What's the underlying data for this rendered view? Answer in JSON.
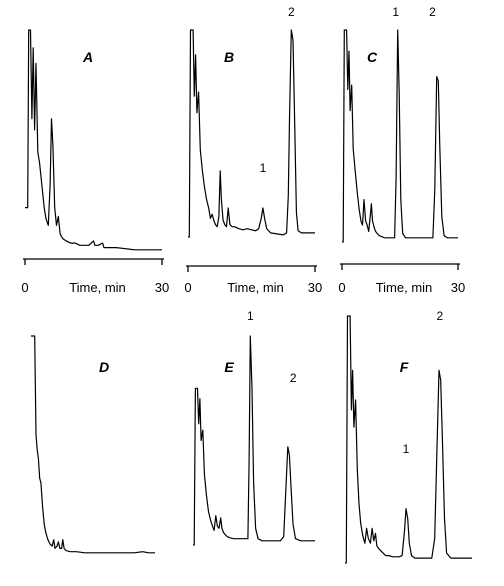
{
  "chart_data": {
    "type": "line",
    "x_axis": {
      "min_label": "0",
      "title": "Time, min",
      "max_label": "30",
      "range": [
        0,
        30
      ]
    },
    "panels": [
      {
        "letter": "A",
        "trace": [
          [
            0,
            20
          ],
          [
            0.3,
            20
          ],
          [
            0.6,
            20
          ],
          [
            0.8,
            100
          ],
          [
            1.2,
            100
          ],
          [
            1.5,
            60
          ],
          [
            1.8,
            92
          ],
          [
            2.1,
            55
          ],
          [
            2.4,
            85
          ],
          [
            2.8,
            45
          ],
          [
            3.2,
            40
          ],
          [
            3.7,
            30
          ],
          [
            4.2,
            20
          ],
          [
            4.6,
            15
          ],
          [
            5.1,
            12
          ],
          [
            5.5,
            30
          ],
          [
            5.8,
            60
          ],
          [
            6.1,
            48
          ],
          [
            6.5,
            20
          ],
          [
            6.9,
            12
          ],
          [
            7.3,
            16
          ],
          [
            7.7,
            8
          ],
          [
            8.3,
            6
          ],
          [
            9,
            5
          ],
          [
            10,
            4
          ],
          [
            11,
            4
          ],
          [
            12,
            3
          ],
          [
            13,
            3
          ],
          [
            14,
            3
          ],
          [
            15,
            5
          ],
          [
            15.3,
            3
          ],
          [
            16,
            3
          ],
          [
            17,
            4
          ],
          [
            17.3,
            2
          ],
          [
            18,
            2
          ],
          [
            20,
            2
          ],
          [
            22,
            1.5
          ],
          [
            24,
            1
          ],
          [
            26,
            1
          ],
          [
            28,
            1
          ],
          [
            30,
            1
          ]
        ],
        "peak_labels": []
      },
      {
        "letter": "B",
        "trace": [
          [
            0,
            0
          ],
          [
            0.3,
            0
          ],
          [
            0.6,
            100
          ],
          [
            1.2,
            100
          ],
          [
            1.5,
            68
          ],
          [
            1.8,
            88
          ],
          [
            2.1,
            60
          ],
          [
            2.5,
            70
          ],
          [
            2.9,
            42
          ],
          [
            3.4,
            32
          ],
          [
            3.9,
            24
          ],
          [
            4.4,
            18
          ],
          [
            4.9,
            14
          ],
          [
            5.3,
            9
          ],
          [
            5.7,
            11
          ],
          [
            6.1,
            8
          ],
          [
            6.5,
            6
          ],
          [
            6.9,
            5
          ],
          [
            7.3,
            10
          ],
          [
            7.6,
            32
          ],
          [
            7.9,
            18
          ],
          [
            8.3,
            8
          ],
          [
            8.7,
            6
          ],
          [
            9.1,
            5
          ],
          [
            9.5,
            14
          ],
          [
            9.9,
            6
          ],
          [
            10.4,
            5
          ],
          [
            11,
            5
          ],
          [
            12,
            4
          ],
          [
            13,
            3.5
          ],
          [
            14,
            4
          ],
          [
            15,
            3.5
          ],
          [
            16,
            3
          ],
          [
            16.7,
            4
          ],
          [
            17.3,
            9
          ],
          [
            17.7,
            14
          ],
          [
            18.1,
            9
          ],
          [
            18.6,
            4
          ],
          [
            19.5,
            2
          ],
          [
            21,
            1.5
          ],
          [
            22.5,
            1
          ],
          [
            23.3,
            2
          ],
          [
            23.7,
            20
          ],
          [
            24,
            60
          ],
          [
            24.4,
            100
          ],
          [
            24.8,
            95
          ],
          [
            25.2,
            55
          ],
          [
            25.6,
            12
          ],
          [
            26,
            3
          ],
          [
            26.8,
            2
          ],
          [
            28,
            2
          ],
          [
            30,
            2
          ]
        ],
        "peak_labels": [
          {
            "text": "1",
            "x": 17.7
          },
          {
            "text": "2",
            "x": 24.4
          }
        ]
      },
      {
        "letter": "C",
        "trace": [
          [
            0,
            0
          ],
          [
            0.3,
            0
          ],
          [
            0.6,
            100
          ],
          [
            1.2,
            100
          ],
          [
            1.5,
            72
          ],
          [
            1.8,
            90
          ],
          [
            2.1,
            62
          ],
          [
            2.5,
            74
          ],
          [
            2.9,
            44
          ],
          [
            3.4,
            34
          ],
          [
            3.9,
            24
          ],
          [
            4.4,
            16
          ],
          [
            4.9,
            10
          ],
          [
            5.3,
            8
          ],
          [
            5.7,
            20
          ],
          [
            6.1,
            10
          ],
          [
            6.5,
            8
          ],
          [
            6.9,
            5
          ],
          [
            7.3,
            12
          ],
          [
            7.6,
            18
          ],
          [
            7.9,
            10
          ],
          [
            8.3,
            7
          ],
          [
            8.7,
            5
          ],
          [
            9.1,
            4
          ],
          [
            9.6,
            3
          ],
          [
            10.3,
            2.5
          ],
          [
            11,
            2
          ],
          [
            12,
            2
          ],
          [
            13,
            2
          ],
          [
            13.6,
            2
          ],
          [
            14,
            30
          ],
          [
            14.4,
            100
          ],
          [
            14.8,
            70
          ],
          [
            15.2,
            20
          ],
          [
            15.7,
            4
          ],
          [
            16.4,
            2
          ],
          [
            18,
            2
          ],
          [
            20,
            2
          ],
          [
            22,
            2
          ],
          [
            23.5,
            2
          ],
          [
            24,
            25
          ],
          [
            24.5,
            78
          ],
          [
            24.9,
            76
          ],
          [
            25.3,
            45
          ],
          [
            25.8,
            12
          ],
          [
            26.4,
            3
          ],
          [
            27.2,
            2
          ],
          [
            28.5,
            2
          ],
          [
            30,
            2
          ]
        ],
        "peak_labels": [
          {
            "text": "1",
            "x": 14.4
          },
          {
            "text": "2",
            "x": 24.7
          }
        ]
      },
      {
        "letter": "D",
        "trace": [
          [
            0,
            100
          ],
          [
            0.4,
            100
          ],
          [
            0.9,
            100
          ],
          [
            1.2,
            55
          ],
          [
            1.5,
            48
          ],
          [
            1.8,
            44
          ],
          [
            2.1,
            35
          ],
          [
            2.4,
            33
          ],
          [
            2.8,
            22
          ],
          [
            3.2,
            14
          ],
          [
            3.6,
            10
          ],
          [
            4.1,
            7
          ],
          [
            4.6,
            5
          ],
          [
            5.1,
            4
          ],
          [
            5.5,
            7
          ],
          [
            5.8,
            3
          ],
          [
            6.3,
            4
          ],
          [
            6.6,
            6
          ],
          [
            7,
            3
          ],
          [
            7.4,
            3
          ],
          [
            7.7,
            7
          ],
          [
            8,
            3
          ],
          [
            8.5,
            2
          ],
          [
            9.5,
            1.5
          ],
          [
            11,
            1.5
          ],
          [
            13,
            1
          ],
          [
            15,
            1
          ],
          [
            17,
            1
          ],
          [
            19,
            1
          ],
          [
            21,
            1
          ],
          [
            23,
            1
          ],
          [
            25,
            1
          ],
          [
            27,
            1.5
          ],
          [
            28.5,
            1
          ],
          [
            30,
            1
          ]
        ],
        "peak_labels": []
      },
      {
        "letter": "E",
        "trace": [
          [
            0,
            0
          ],
          [
            0.3,
            0
          ],
          [
            0.6,
            75
          ],
          [
            1.1,
            75
          ],
          [
            1.4,
            58
          ],
          [
            1.7,
            70
          ],
          [
            2,
            50
          ],
          [
            2.4,
            55
          ],
          [
            2.8,
            34
          ],
          [
            3.3,
            24
          ],
          [
            3.8,
            16
          ],
          [
            4.3,
            12
          ],
          [
            4.8,
            9
          ],
          [
            5.2,
            7
          ],
          [
            5.6,
            14
          ],
          [
            6,
            9
          ],
          [
            6.4,
            8
          ],
          [
            6.8,
            13
          ],
          [
            7.1,
            8
          ],
          [
            7.5,
            6
          ],
          [
            7.9,
            5
          ],
          [
            8.4,
            4
          ],
          [
            9,
            3.5
          ],
          [
            10,
            3
          ],
          [
            11,
            3
          ],
          [
            12,
            3
          ],
          [
            13,
            3
          ],
          [
            13.5,
            3
          ],
          [
            13.8,
            40
          ],
          [
            14.1,
            100
          ],
          [
            14.5,
            75
          ],
          [
            14.9,
            30
          ],
          [
            15.4,
            8
          ],
          [
            16,
            3
          ],
          [
            17,
            2
          ],
          [
            18.5,
            2
          ],
          [
            20,
            2
          ],
          [
            21.5,
            2
          ],
          [
            22.3,
            4
          ],
          [
            22.8,
            25
          ],
          [
            23.3,
            47
          ],
          [
            23.7,
            43
          ],
          [
            24.1,
            28
          ],
          [
            24.6,
            10
          ],
          [
            25.2,
            3
          ],
          [
            26.5,
            2
          ],
          [
            28,
            2
          ],
          [
            30,
            2
          ]
        ],
        "peak_labels": [
          {
            "text": "1",
            "x": 14.1
          },
          {
            "text": "2",
            "x": 23.4
          }
        ]
      },
      {
        "letter": "F",
        "trace": [
          [
            0,
            0
          ],
          [
            0.3,
            0
          ],
          [
            0.6,
            100
          ],
          [
            1.2,
            100
          ],
          [
            1.5,
            62
          ],
          [
            1.8,
            78
          ],
          [
            2.1,
            55
          ],
          [
            2.5,
            66
          ],
          [
            2.9,
            38
          ],
          [
            3.3,
            24
          ],
          [
            3.7,
            16
          ],
          [
            4.2,
            11
          ],
          [
            4.7,
            8
          ],
          [
            5.1,
            14
          ],
          [
            5.5,
            10
          ],
          [
            6,
            8
          ],
          [
            6.4,
            14
          ],
          [
            6.8,
            9
          ],
          [
            7.2,
            12
          ],
          [
            7.5,
            7
          ],
          [
            7.9,
            6
          ],
          [
            8.4,
            5
          ],
          [
            9,
            4
          ],
          [
            9.6,
            3
          ],
          [
            10.4,
            3
          ],
          [
            11.2,
            2.5
          ],
          [
            12,
            2.5
          ],
          [
            12.8,
            2.5
          ],
          [
            13.5,
            3
          ],
          [
            14,
            12
          ],
          [
            14.4,
            22
          ],
          [
            14.8,
            18
          ],
          [
            15.2,
            8
          ],
          [
            15.7,
            3
          ],
          [
            16.5,
            2
          ],
          [
            18,
            2
          ],
          [
            19.5,
            2
          ],
          [
            20.5,
            2
          ],
          [
            21.2,
            10
          ],
          [
            21.7,
            45
          ],
          [
            22.2,
            78
          ],
          [
            22.6,
            74
          ],
          [
            23,
            50
          ],
          [
            23.5,
            18
          ],
          [
            24,
            4
          ],
          [
            25,
            2
          ],
          [
            27,
            2
          ],
          [
            28.5,
            2
          ],
          [
            30,
            2
          ]
        ],
        "peak_labels": [
          {
            "text": "1",
            "x": 14.4
          },
          {
            "text": "2",
            "x": 22.4
          }
        ]
      }
    ]
  }
}
